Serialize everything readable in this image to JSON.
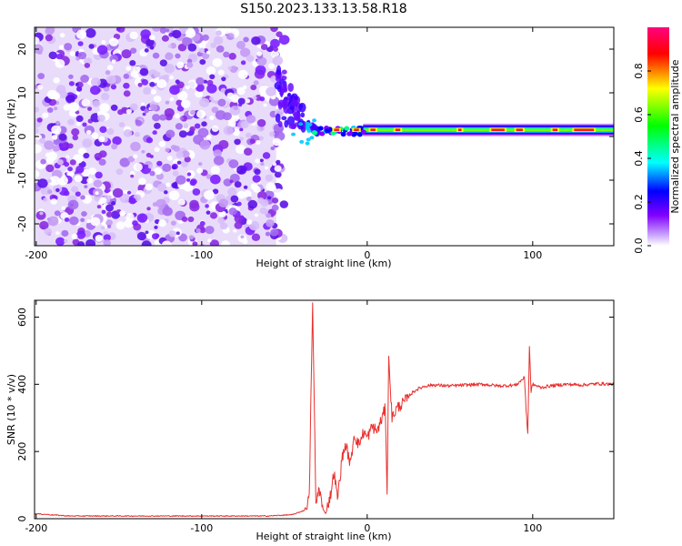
{
  "title": "S150.2023.133.13.58.R18",
  "colors": {
    "snr_line": "#e8312f",
    "axes": "#000000",
    "noise_purple": "#8a2be2",
    "colorscale": [
      "#ffffff",
      "#8000ff",
      "#0000ff",
      "#00ffff",
      "#00ff00",
      "#ffff00",
      "#ff0000",
      "#ff0080"
    ]
  },
  "chart_data": [
    {
      "type": "heatmap",
      "xlabel": "Height of straight line (km)",
      "ylabel": "Frequency (Hz)",
      "xlim": [
        -201,
        149
      ],
      "ylim": [
        -25,
        25
      ],
      "xticks": [
        -200,
        -100,
        0,
        100
      ],
      "yticks": [
        -20,
        -10,
        0,
        10,
        20
      ],
      "colorbar": {
        "label": "Normalized spectral amplitude",
        "range": [
          0,
          1
        ],
        "ticks": [
          0.0,
          0.2,
          0.4,
          0.6,
          0.8
        ]
      },
      "features": {
        "noise_region_x": [
          -201,
          -55
        ],
        "transition_x": [
          -55,
          -30
        ],
        "signal_band_x": [
          -30,
          149
        ],
        "signal_band_freq_hz": 1.5
      }
    },
    {
      "type": "line",
      "xlabel": "Height of straight line (km)",
      "ylabel": "SNR (10 * v/v)",
      "xlim": [
        -201,
        149
      ],
      "ylim": [
        0,
        650
      ],
      "xticks": [
        -200,
        -100,
        0,
        100
      ],
      "yticks": [
        0,
        200,
        400,
        600
      ],
      "series": [
        {
          "x": [
            -201,
            -180,
            -150,
            -120,
            -90,
            -60,
            -45,
            -38,
            -35,
            -33,
            -31,
            -29,
            -27,
            -25,
            -22,
            -20,
            -18,
            -15,
            -13,
            -10,
            -8,
            -5,
            -2,
            0,
            3,
            6,
            9,
            11,
            12,
            13,
            15,
            18,
            22,
            26,
            30,
            35,
            40,
            50,
            60,
            70,
            80,
            90,
            95,
            97,
            98,
            99,
            100,
            105,
            110,
            120,
            130,
            140,
            149
          ],
          "y": [
            15,
            8,
            8,
            8,
            8,
            8,
            12,
            25,
            60,
            640,
            40,
            95,
            30,
            15,
            75,
            140,
            60,
            185,
            220,
            160,
            250,
            220,
            260,
            240,
            275,
            260,
            300,
            330,
            75,
            480,
            300,
            330,
            345,
            370,
            385,
            395,
            398,
            395,
            398,
            400,
            395,
            398,
            420,
            250,
            510,
            380,
            400,
            390,
            395,
            400,
            398,
            402,
            400
          ]
        }
      ]
    }
  ]
}
